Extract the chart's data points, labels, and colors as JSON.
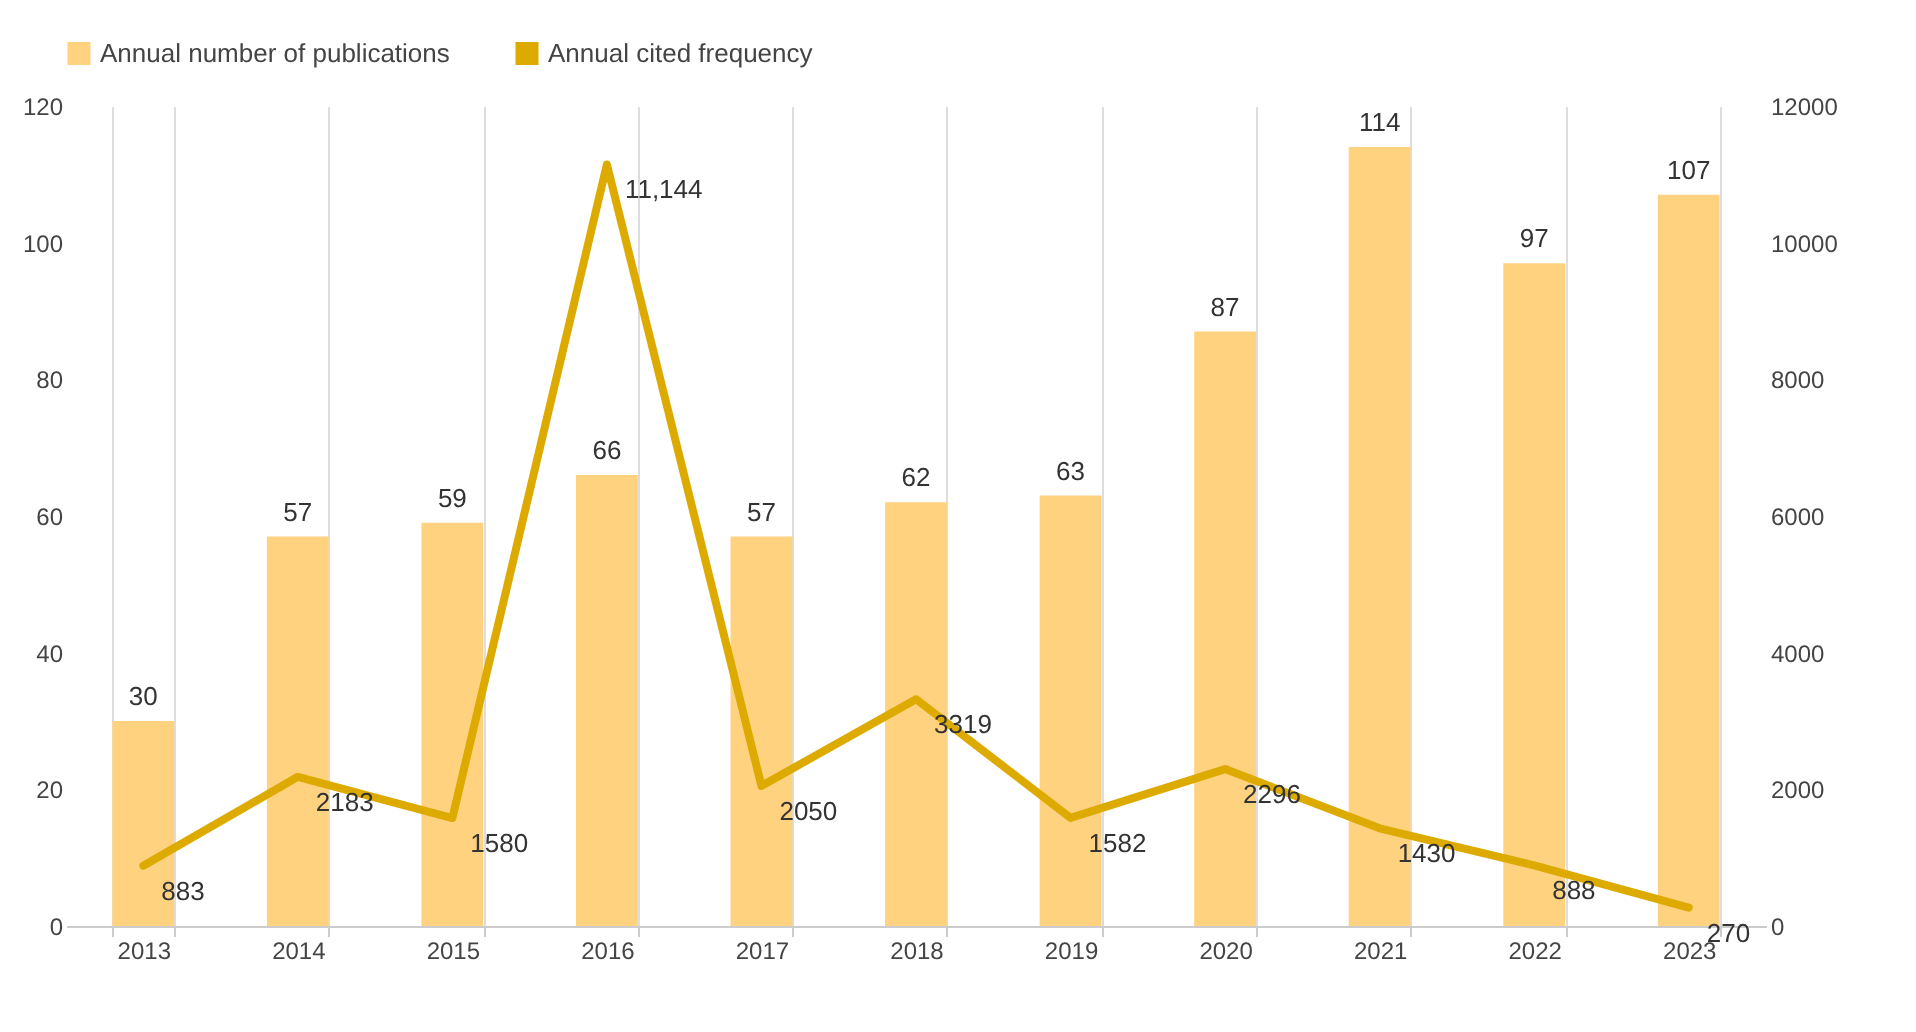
{
  "chart_data": {
    "type": "bar",
    "categories": [
      "2013",
      "2014",
      "2015",
      "2016",
      "2017",
      "2018",
      "2019",
      "2020",
      "2021",
      "2022",
      "2023"
    ],
    "series": [
      {
        "name": "Annual number of publications",
        "color": "#ffd280",
        "values": [
          30,
          57,
          59,
          66,
          57,
          62,
          63,
          87,
          114,
          97,
          107
        ],
        "value_labels": [
          "30",
          "57",
          "59",
          "66",
          "57",
          "62",
          "63",
          "87",
          "114",
          "97",
          "107"
        ]
      },
      {
        "name": "Annual cited frequency",
        "type": "line",
        "axis": "y2",
        "color": "#ddaa00",
        "values": [
          883,
          2183,
          1580,
          11144,
          2050,
          3319,
          1582,
          2296,
          1430,
          888,
          270
        ],
        "value_labels": [
          "883",
          "2183",
          "1580",
          "11,144",
          "2050",
          "3319",
          "1582",
          "2296",
          "1430",
          "888",
          "270"
        ]
      }
    ],
    "ylim": [
      0,
      120
    ],
    "yticks": [
      0,
      20,
      40,
      60,
      80,
      100,
      120
    ],
    "y2lim": [
      0,
      12000
    ],
    "y2ticks": [
      0,
      2000,
      4000,
      6000,
      8000,
      10000,
      12000
    ],
    "grid": "x",
    "legend": "top",
    "marker": "none",
    "line_style": "solid"
  }
}
